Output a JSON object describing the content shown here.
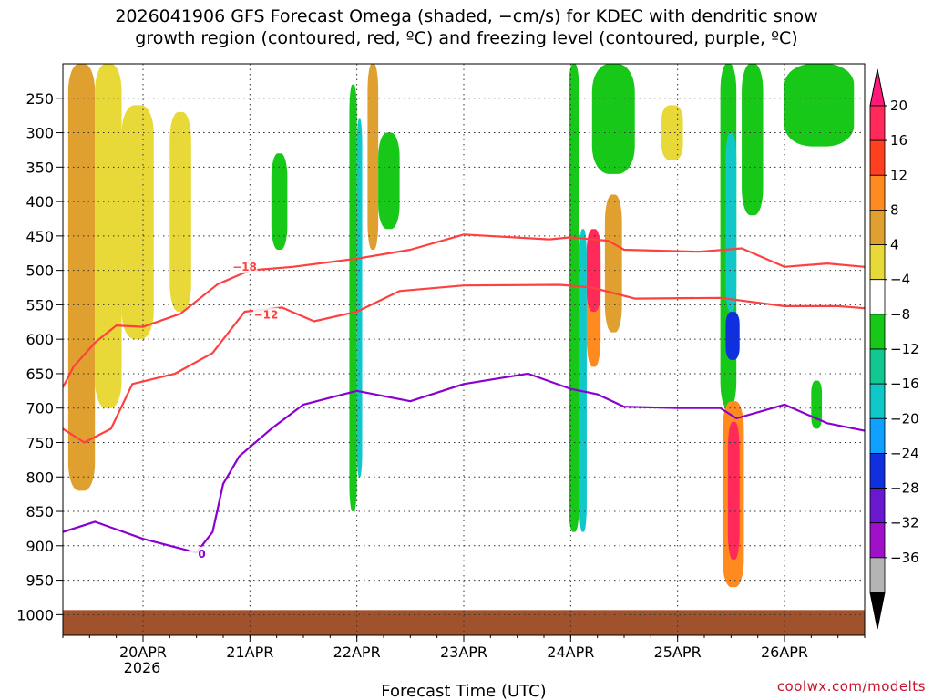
{
  "chart_data": {
    "type": "heatmap",
    "title": "2026041906 GFS Forecast Omega (shaded, −cm/s) for KDEC with dendritic snow\ngrowth region (contoured, red, ºC) and freezing level (contoured, purple, ºC)",
    "xlabel": "Forecast Time (UTC)",
    "ylabel": "",
    "x_ticks": [
      "20APR",
      "21APR",
      "22APR",
      "23APR",
      "24APR",
      "25APR",
      "26APR"
    ],
    "x_tick_values": [
      1,
      2,
      3,
      4,
      5,
      6,
      7
    ],
    "x_sublabel": "2026",
    "xlim": [
      0.25,
      7.75
    ],
    "y_ticks": [
      250,
      300,
      350,
      400,
      450,
      500,
      550,
      600,
      650,
      700,
      750,
      800,
      850,
      900,
      950,
      1000
    ],
    "ylim": [
      200,
      1030
    ],
    "colorbar": {
      "labels": [
        "20",
        "16",
        "12",
        "8",
        "4",
        "−4",
        "−8",
        "−12",
        "−16",
        "−20",
        "−24",
        "−28",
        "−32",
        "−36"
      ],
      "colors": [
        "#ff2a5a",
        "#ff4020",
        "#ff8a20",
        "#e0a030",
        "#e8d838",
        "#ffffff",
        "#18c818",
        "#10c890",
        "#10c8c8",
        "#10a0ff",
        "#1030e0",
        "#6a18d0",
        "#a010c8",
        "#b4b4b4"
      ],
      "top_color": "#ff1a7a",
      "bottom_color": "#000000"
    },
    "ground_color": "#a0522d",
    "ground_level": 1000,
    "omega_patches": [
      {
        "x": [
          0.3,
          0.55
        ],
        "p": [
          200,
          820
        ],
        "level": 8
      },
      {
        "x": [
          0.55,
          0.8
        ],
        "p": [
          200,
          700
        ],
        "level": 4
      },
      {
        "x": [
          0.8,
          1.1
        ],
        "p": [
          260,
          600
        ],
        "level": 4
      },
      {
        "x": [
          1.25,
          1.45
        ],
        "p": [
          270,
          560
        ],
        "level": 4
      },
      {
        "x": [
          2.2,
          2.35
        ],
        "p": [
          330,
          470
        ],
        "level": -4
      },
      {
        "x": [
          2.93,
          3.0
        ],
        "p": [
          230,
          850
        ],
        "level": -8
      },
      {
        "x": [
          3.0,
          3.05
        ],
        "p": [
          280,
          800
        ],
        "level": -16
      },
      {
        "x": [
          3.1,
          3.2
        ],
        "p": [
          200,
          470
        ],
        "level": 8
      },
      {
        "x": [
          3.2,
          3.4
        ],
        "p": [
          300,
          440
        ],
        "level": -8
      },
      {
        "x": [
          4.98,
          5.08
        ],
        "p": [
          200,
          880
        ],
        "level": -8
      },
      {
        "x": [
          5.08,
          5.15
        ],
        "p": [
          440,
          880
        ],
        "level": -16
      },
      {
        "x": [
          5.15,
          5.28
        ],
        "p": [
          450,
          640
        ],
        "level": 12
      },
      {
        "x": [
          5.15,
          5.28
        ],
        "p": [
          440,
          560
        ],
        "level": 20
      },
      {
        "x": [
          5.32,
          5.48
        ],
        "p": [
          390,
          590
        ],
        "level": 8
      },
      {
        "x": [
          5.2,
          5.6
        ],
        "p": [
          200,
          360
        ],
        "level": -8
      },
      {
        "x": [
          5.85,
          6.05
        ],
        "p": [
          260,
          340
        ],
        "level": 4
      },
      {
        "x": [
          6.4,
          6.55
        ],
        "p": [
          200,
          700
        ],
        "level": -8
      },
      {
        "x": [
          6.45,
          6.55
        ],
        "p": [
          300,
          560
        ],
        "level": -16
      },
      {
        "x": [
          6.45,
          6.58
        ],
        "p": [
          560,
          630
        ],
        "level": -24
      },
      {
        "x": [
          6.42,
          6.62
        ],
        "p": [
          690,
          960
        ],
        "level": 12
      },
      {
        "x": [
          6.47,
          6.58
        ],
        "p": [
          720,
          920
        ],
        "level": 20
      },
      {
        "x": [
          6.6,
          6.8
        ],
        "p": [
          200,
          420
        ],
        "level": -8
      },
      {
        "x": [
          7.0,
          7.65
        ],
        "p": [
          200,
          320
        ],
        "level": -8
      },
      {
        "x": [
          7.25,
          7.35
        ],
        "p": [
          660,
          730
        ],
        "level": -8
      }
    ],
    "contours": [
      {
        "name": "-18",
        "color": "#ff4040",
        "label": "−18",
        "x": [
          0.25,
          0.35,
          0.55,
          0.75,
          1.0,
          1.35,
          1.7,
          2.0,
          2.4,
          3.0,
          3.5,
          4.0,
          4.8,
          5.0,
          5.35,
          5.5,
          6.2,
          6.6,
          7.0,
          7.4,
          7.75
        ],
        "p": [
          670,
          640,
          605,
          580,
          582,
          563,
          520,
          500,
          495,
          483,
          470,
          448,
          455,
          452,
          457,
          470,
          473,
          468,
          495,
          490,
          495
        ],
        "label_x": 1.95,
        "label_p": 495
      },
      {
        "name": "-12",
        "color": "#ff4040",
        "label": "−12",
        "x": [
          0.25,
          0.45,
          0.7,
          0.9,
          1.3,
          1.65,
          1.95,
          2.3,
          2.6,
          3.0,
          3.4,
          4.0,
          4.9,
          5.2,
          5.6,
          6.4,
          7.0,
          7.5,
          7.75
        ],
        "p": [
          730,
          750,
          730,
          665,
          650,
          620,
          560,
          554,
          574,
          560,
          530,
          522,
          521,
          525,
          541,
          540,
          552,
          552,
          555
        ],
        "label_x": 2.15,
        "label_p": 565
      },
      {
        "name": "0",
        "color": "#8a00d0",
        "label": "0",
        "x": [
          0.25,
          0.55,
          1.0,
          1.5,
          1.65,
          1.75,
          1.9,
          2.2,
          2.5,
          3.0,
          3.5,
          4.0,
          4.6,
          5.0,
          5.25,
          5.5,
          6.0,
          6.4,
          6.55,
          7.0,
          7.4,
          7.75
        ],
        "p": [
          880,
          865,
          890,
          910,
          880,
          810,
          770,
          730,
          695,
          675,
          690,
          665,
          650,
          672,
          680,
          698,
          700,
          700,
          715,
          695,
          722,
          733
        ],
        "label_x": 1.55,
        "label_p": 912
      }
    ]
  },
  "watermark": "coolwx.com/modelts"
}
